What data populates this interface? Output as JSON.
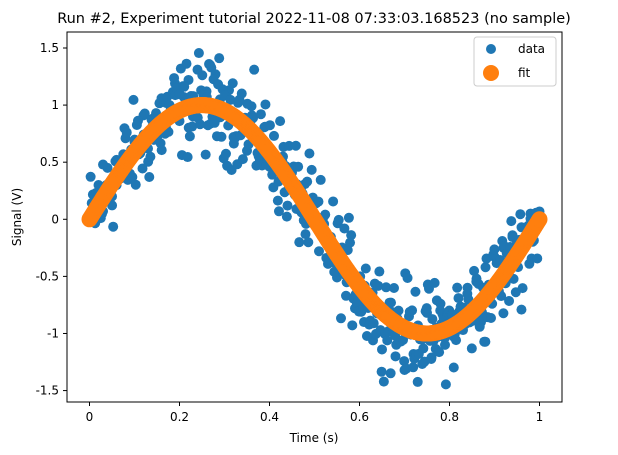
{
  "chart_data": {
    "type": "scatter",
    "title": "Run #2, Experiment tutorial 2022-11-08 07:33:03.168523 (no sample)",
    "xlabel": "Time (s)",
    "ylabel": "Signal (V)",
    "xlim": [
      -0.05,
      1.05
    ],
    "ylim": [
      -1.6,
      1.64
    ],
    "x_ticks": [
      0,
      0.2,
      0.4,
      0.6,
      0.8,
      1
    ],
    "x_tick_labels": [
      "0",
      "0.2",
      "0.4",
      "0.6",
      "0.8",
      "1"
    ],
    "y_ticks": [
      -1.5,
      -1,
      -0.5,
      0,
      0.5,
      1,
      1.5
    ],
    "y_tick_labels": [
      "-1.5",
      "-1",
      "-0.5",
      "0",
      "0.5",
      "1",
      "1.5"
    ],
    "grid": false,
    "legend_position": "top-right",
    "colors": {
      "data": "#1f77b4",
      "fit": "#ff7f0e"
    },
    "series": [
      {
        "name": "data",
        "kind": "noisy-samples",
        "x": [
          0.0,
          0.01,
          0.02,
          0.03,
          0.04,
          0.05,
          0.06,
          0.07,
          0.08,
          0.09,
          0.1,
          0.11,
          0.12,
          0.13,
          0.14,
          0.15,
          0.16,
          0.17,
          0.18,
          0.19,
          0.2,
          0.21,
          0.22,
          0.23,
          0.24,
          0.25,
          0.26,
          0.27,
          0.28,
          0.29,
          0.3,
          0.31,
          0.32,
          0.33,
          0.34,
          0.35,
          0.36,
          0.37,
          0.38,
          0.39,
          0.4,
          0.41,
          0.42,
          0.43,
          0.44,
          0.45,
          0.46,
          0.47,
          0.48,
          0.49,
          0.5,
          0.51,
          0.52,
          0.53,
          0.54,
          0.55,
          0.56,
          0.57,
          0.58,
          0.59,
          0.6,
          0.61,
          0.62,
          0.63,
          0.64,
          0.65,
          0.66,
          0.67,
          0.68,
          0.69,
          0.7,
          0.71,
          0.72,
          0.73,
          0.74,
          0.75,
          0.76,
          0.77,
          0.78,
          0.79,
          0.8,
          0.81,
          0.82,
          0.83,
          0.84,
          0.85,
          0.86,
          0.87,
          0.88,
          0.89,
          0.9,
          0.91,
          0.92,
          0.93,
          0.94,
          0.95,
          0.96,
          0.97,
          0.98,
          0.99,
          1.0
        ],
        "y": [
          0.02,
          0.14,
          0.3,
          0.07,
          0.45,
          0.2,
          0.52,
          0.36,
          0.71,
          0.4,
          0.68,
          0.57,
          0.91,
          0.62,
          0.88,
          0.73,
          1.06,
          0.8,
          0.95,
          1.19,
          0.86,
          1.07,
          1.22,
          0.9,
          1.31,
          1.0,
          1.12,
          0.84,
          1.27,
          1.05,
          0.93,
          1.13,
          0.72,
          1.02,
          0.88,
          0.6,
          0.99,
          0.75,
          0.53,
          0.81,
          0.46,
          0.73,
          0.33,
          0.55,
          0.12,
          0.41,
          0.09,
          0.27,
          -0.13,
          0.16,
          -0.05,
          -0.28,
          0.02,
          -0.39,
          -0.2,
          -0.51,
          -0.31,
          -0.67,
          -0.45,
          -0.78,
          -0.58,
          -0.9,
          -0.7,
          -1.06,
          -0.77,
          -1.14,
          -0.86,
          -0.73,
          -1.2,
          -0.94,
          -1.32,
          -0.85,
          -1.18,
          -0.93,
          -1.05,
          -0.82,
          -1.21,
          -0.95,
          -0.74,
          -1.1,
          -0.88,
          -1.03,
          -0.69,
          -0.97,
          -0.6,
          -0.84,
          -0.52,
          -0.9,
          -0.42,
          -0.69,
          -0.33,
          -0.57,
          -0.25,
          -0.44,
          -0.14,
          -0.31,
          -0.07,
          -0.2,
          0.05,
          -0.11,
          0.02
        ],
        "note_x": "",
        "note_y": ""
      },
      {
        "name": "fit",
        "kind": "sine",
        "amplitude": 1.0,
        "frequency": 1.0,
        "x_start": 0,
        "x_end": 1
      }
    ]
  }
}
